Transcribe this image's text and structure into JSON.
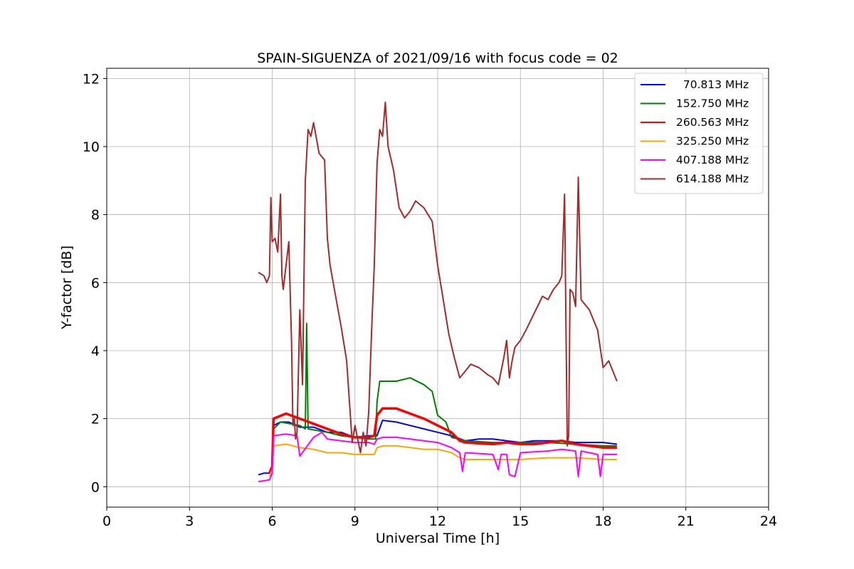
{
  "chart_data": {
    "type": "line",
    "title": "SPAIN-SIGUENZA of 2021/09/16 with focus code = 02",
    "xlabel": "Universal Time [h]",
    "ylabel": "Y-factor [dB]",
    "xlim": [
      0,
      24
    ],
    "ylim": [
      -0.6,
      12.3
    ],
    "xticks": [
      0,
      3,
      6,
      9,
      12,
      15,
      18,
      21,
      24
    ],
    "yticks": [
      0,
      2,
      4,
      6,
      8,
      10,
      12
    ],
    "grid": true,
    "legend_position": "top-right",
    "series": [
      {
        "name": "  70.813 MHz",
        "color": "#0000ff",
        "x": [
          5.5,
          5.7,
          5.9,
          6.0,
          6.05,
          6.3,
          6.6,
          7.0,
          7.5,
          8.0,
          8.5,
          9.0,
          9.5,
          9.8,
          10.0,
          10.5,
          11.0,
          11.5,
          12.0,
          12.5,
          13.0,
          13.5,
          14.0,
          14.5,
          15.0,
          15.5,
          16.0,
          16.5,
          17.0,
          17.5,
          18.0,
          18.5
        ],
        "y": [
          0.35,
          0.4,
          0.4,
          0.5,
          1.8,
          1.9,
          1.9,
          1.75,
          1.75,
          1.6,
          1.6,
          1.45,
          1.5,
          1.5,
          1.95,
          1.9,
          1.8,
          1.7,
          1.6,
          1.5,
          1.35,
          1.4,
          1.4,
          1.35,
          1.3,
          1.35,
          1.35,
          1.35,
          1.3,
          1.3,
          1.3,
          1.25
        ]
      },
      {
        "name": "152.750 MHz",
        "color": "#008000",
        "x": [
          5.9,
          6.0,
          6.05,
          6.3,
          7.0,
          7.2,
          7.25,
          7.3,
          8.0,
          8.5,
          9.0,
          9.5,
          9.75,
          9.8,
          9.9,
          10.0,
          10.5,
          11.0,
          11.5,
          11.8,
          12.0,
          12.3,
          12.5,
          13.0,
          14.0,
          15.0,
          16.0,
          17.0,
          18.0,
          18.5
        ],
        "y": [
          0.4,
          0.6,
          1.7,
          1.9,
          1.8,
          1.7,
          4.8,
          1.7,
          1.6,
          1.5,
          1.45,
          1.4,
          1.4,
          2.5,
          3.1,
          3.1,
          3.1,
          3.2,
          3.0,
          2.8,
          2.1,
          1.9,
          1.45,
          1.35,
          1.3,
          1.3,
          1.3,
          1.25,
          1.2,
          1.2
        ]
      },
      {
        "name": "260.563 MHz",
        "color": "#ff0000",
        "x": [
          5.9,
          6.0,
          6.05,
          6.5,
          7.0,
          7.5,
          8.0,
          8.5,
          9.0,
          9.5,
          9.7,
          9.8,
          10.0,
          10.5,
          11.0,
          11.5,
          12.0,
          12.5,
          12.8,
          13.0,
          14.0,
          14.5,
          15.0,
          15.5,
          16.0,
          16.5,
          17.0,
          17.5,
          18.0,
          18.5
        ],
        "y": [
          0.4,
          0.6,
          2.0,
          2.15,
          2.0,
          1.85,
          1.7,
          1.55,
          1.45,
          1.45,
          1.5,
          2.1,
          2.3,
          2.3,
          2.15,
          2.0,
          1.8,
          1.6,
          1.35,
          1.3,
          1.25,
          1.3,
          1.25,
          1.25,
          1.3,
          1.35,
          1.25,
          1.2,
          1.15,
          1.15
        ]
      },
      {
        "name": "325.250 MHz",
        "color": "#ffa500",
        "x": [
          5.9,
          6.0,
          6.05,
          6.5,
          7.0,
          7.5,
          8.0,
          8.5,
          9.0,
          9.5,
          9.7,
          9.8,
          10.0,
          10.5,
          11.0,
          11.5,
          12.0,
          12.5,
          12.8,
          13.0,
          14.0,
          15.0,
          16.0,
          17.0,
          18.0,
          18.5
        ],
        "y": [
          0.3,
          0.5,
          1.2,
          1.25,
          1.15,
          1.1,
          1.0,
          1.0,
          0.95,
          0.95,
          0.95,
          1.15,
          1.2,
          1.2,
          1.15,
          1.1,
          1.1,
          1.0,
          0.85,
          0.8,
          0.8,
          0.8,
          0.85,
          0.85,
          0.8,
          0.8
        ]
      },
      {
        "name": "407.188 MHz",
        "color": "#ff00ff",
        "x": [
          5.5,
          5.9,
          6.0,
          6.05,
          6.5,
          6.9,
          7.0,
          7.5,
          7.8,
          8.0,
          8.5,
          9.0,
          9.5,
          9.7,
          9.8,
          10.0,
          10.5,
          11.0,
          11.5,
          12.0,
          12.5,
          12.8,
          12.9,
          13.0,
          14.0,
          14.2,
          14.3,
          14.5,
          14.6,
          14.8,
          15.0,
          16.0,
          16.5,
          17.0,
          17.1,
          17.2,
          17.5,
          17.8,
          17.9,
          18.0,
          18.5
        ],
        "y": [
          0.15,
          0.2,
          0.4,
          1.5,
          1.55,
          1.5,
          0.9,
          1.45,
          1.6,
          1.4,
          1.35,
          1.3,
          1.3,
          1.25,
          1.4,
          1.45,
          1.45,
          1.4,
          1.35,
          1.3,
          1.15,
          1.0,
          0.45,
          1.0,
          0.95,
          0.5,
          0.95,
          0.95,
          0.35,
          0.3,
          1.0,
          1.05,
          1.1,
          1.05,
          0.3,
          1.05,
          1.0,
          0.95,
          0.3,
          0.95,
          0.95
        ]
      },
      {
        "name": "614.188 MHz",
        "color": "#a52a2a",
        "x": [
          5.5,
          5.7,
          5.8,
          5.9,
          5.95,
          6.0,
          6.1,
          6.2,
          6.3,
          6.35,
          6.4,
          6.5,
          6.6,
          6.7,
          6.75,
          6.8,
          6.85,
          6.9,
          7.0,
          7.1,
          7.2,
          7.3,
          7.4,
          7.5,
          7.7,
          7.9,
          8.0,
          8.1,
          8.3,
          8.5,
          8.7,
          8.9,
          9.0,
          9.1,
          9.2,
          9.3,
          9.4,
          9.5,
          9.6,
          9.7,
          9.8,
          9.9,
          10.0,
          10.1,
          10.2,
          10.4,
          10.6,
          10.8,
          11.0,
          11.2,
          11.5,
          11.8,
          12.0,
          12.2,
          12.4,
          12.6,
          12.8,
          13.0,
          13.2,
          13.5,
          13.8,
          14.0,
          14.2,
          14.4,
          14.5,
          14.6,
          14.7,
          14.8,
          15.0,
          15.2,
          15.5,
          15.8,
          16.0,
          16.2,
          16.4,
          16.5,
          16.6,
          16.7,
          16.75,
          16.8,
          16.9,
          17.0,
          17.1,
          17.2,
          17.5,
          17.8,
          18.0,
          18.2,
          18.5
        ],
        "y": [
          6.3,
          6.2,
          6.0,
          6.2,
          8.5,
          7.2,
          7.3,
          6.9,
          8.6,
          6.2,
          5.8,
          6.5,
          7.2,
          4.3,
          1.8,
          2.0,
          1.4,
          1.6,
          5.2,
          3.0,
          9.0,
          10.5,
          10.3,
          10.7,
          9.8,
          9.6,
          7.3,
          6.5,
          5.6,
          4.7,
          3.7,
          1.3,
          1.8,
          1.4,
          1.0,
          1.6,
          1.2,
          2.2,
          4.5,
          6.5,
          9.5,
          10.5,
          10.3,
          11.3,
          10.0,
          9.3,
          8.2,
          7.9,
          8.1,
          8.4,
          8.2,
          7.8,
          6.5,
          5.5,
          4.5,
          3.8,
          3.2,
          3.4,
          3.6,
          3.5,
          3.3,
          3.2,
          3.0,
          3.8,
          4.3,
          3.2,
          3.7,
          4.1,
          4.3,
          4.6,
          5.1,
          5.6,
          5.5,
          5.8,
          6.0,
          6.2,
          8.6,
          1.2,
          1.5,
          5.8,
          5.7,
          5.3,
          9.1,
          5.5,
          5.2,
          4.6,
          3.5,
          3.7,
          3.1
        ]
      }
    ]
  }
}
